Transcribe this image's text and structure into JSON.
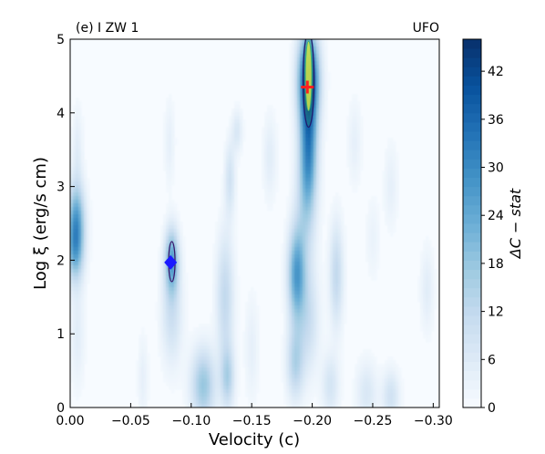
{
  "chart_data": {
    "type": "heatmap",
    "panel_label": "(e) I ZW 1",
    "corner_label": "UFO",
    "xlabel": "Velocity (c)",
    "ylabel": "Log ξ (erg/s cm)",
    "xlim": [
      0.0,
      -0.305
    ],
    "ylim": [
      0,
      5
    ],
    "x_ticks": [
      0.0,
      -0.05,
      -0.1,
      -0.15,
      -0.2,
      -0.25,
      -0.3
    ],
    "x_tick_labels": [
      "0.00",
      "−0.05",
      "−0.10",
      "−0.15",
      "−0.20",
      "−0.25",
      "−0.30"
    ],
    "y_ticks": [
      0,
      1,
      2,
      3,
      4,
      5
    ],
    "y_tick_labels": [
      "0",
      "1",
      "2",
      "3",
      "4",
      "5"
    ],
    "colorbar": {
      "label": "ΔC − stat",
      "range": [
        0,
        46
      ],
      "ticks": [
        0,
        6,
        12,
        18,
        24,
        30,
        36,
        42
      ],
      "tick_labels": [
        "0",
        "6",
        "12",
        "18",
        "24",
        "30",
        "36",
        "42"
      ]
    },
    "markers": [
      {
        "name": "best-fit",
        "shape": "plus",
        "color": "#ff2020",
        "x": -0.196,
        "y": 4.35
      },
      {
        "name": "secondary",
        "shape": "diamond",
        "color": "#1a1aff",
        "x": -0.083,
        "y": 1.97
      }
    ],
    "blobs": [
      {
        "x": -0.197,
        "y": 4.45,
        "sx": 0.006,
        "sy": 0.45,
        "v": 45
      },
      {
        "x": -0.197,
        "y": 3.5,
        "sx": 0.005,
        "sy": 0.5,
        "v": 24
      },
      {
        "x": -0.195,
        "y": 2.8,
        "sx": 0.006,
        "sy": 0.6,
        "v": 12
      },
      {
        "x": -0.197,
        "y": 1.2,
        "sx": 0.006,
        "sy": 0.5,
        "v": 10
      },
      {
        "x": -0.187,
        "y": 1.8,
        "sx": 0.005,
        "sy": 0.45,
        "v": 26
      },
      {
        "x": -0.186,
        "y": 0.6,
        "sx": 0.005,
        "sy": 0.35,
        "v": 14
      },
      {
        "x": -0.084,
        "y": 2.0,
        "sx": 0.004,
        "sy": 0.3,
        "v": 24
      },
      {
        "x": -0.084,
        "y": 1.3,
        "sx": 0.006,
        "sy": 0.5,
        "v": 10
      },
      {
        "x": -0.082,
        "y": 3.6,
        "sx": 0.003,
        "sy": 0.4,
        "v": 4
      },
      {
        "x": -0.005,
        "y": 2.55,
        "sx": 0.005,
        "sy": 0.35,
        "v": 24
      },
      {
        "x": -0.004,
        "y": 2.1,
        "sx": 0.005,
        "sy": 0.3,
        "v": 18
      },
      {
        "x": -0.006,
        "y": 3.5,
        "sx": 0.003,
        "sy": 0.4,
        "v": 5
      },
      {
        "x": -0.006,
        "y": 1.0,
        "sx": 0.004,
        "sy": 0.5,
        "v": 5
      },
      {
        "x": -0.11,
        "y": 0.3,
        "sx": 0.007,
        "sy": 0.35,
        "v": 18
      },
      {
        "x": -0.128,
        "y": 1.5,
        "sx": 0.005,
        "sy": 0.6,
        "v": 12
      },
      {
        "x": -0.13,
        "y": 0.4,
        "sx": 0.004,
        "sy": 0.3,
        "v": 14
      },
      {
        "x": -0.132,
        "y": 3.1,
        "sx": 0.003,
        "sy": 0.35,
        "v": 9
      },
      {
        "x": -0.138,
        "y": 3.75,
        "sx": 0.003,
        "sy": 0.2,
        "v": 7
      },
      {
        "x": -0.165,
        "y": 3.4,
        "sx": 0.004,
        "sy": 0.4,
        "v": 5
      },
      {
        "x": -0.22,
        "y": 1.8,
        "sx": 0.004,
        "sy": 0.5,
        "v": 12
      },
      {
        "x": -0.215,
        "y": 0.3,
        "sx": 0.005,
        "sy": 0.3,
        "v": 8
      },
      {
        "x": -0.245,
        "y": 0.2,
        "sx": 0.006,
        "sy": 0.3,
        "v": 7
      },
      {
        "x": -0.265,
        "y": 0.15,
        "sx": 0.005,
        "sy": 0.25,
        "v": 9
      },
      {
        "x": -0.235,
        "y": 3.6,
        "sx": 0.004,
        "sy": 0.4,
        "v": 4
      },
      {
        "x": -0.265,
        "y": 3.0,
        "sx": 0.004,
        "sy": 0.4,
        "v": 4
      },
      {
        "x": -0.06,
        "y": 0.4,
        "sx": 0.003,
        "sy": 0.4,
        "v": 4
      },
      {
        "x": -0.15,
        "y": 0.8,
        "sx": 0.004,
        "sy": 0.5,
        "v": 4
      },
      {
        "x": -0.295,
        "y": 1.6,
        "sx": 0.004,
        "sy": 0.4,
        "v": 5
      },
      {
        "x": -0.25,
        "y": 2.3,
        "sx": 0.004,
        "sy": 0.4,
        "v": 3
      }
    ],
    "contour_level": 22,
    "grid": false
  }
}
